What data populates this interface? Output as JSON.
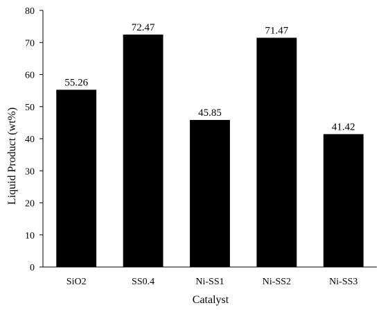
{
  "chart_data": {
    "type": "bar",
    "title": "",
    "xlabel": "Catalyst",
    "ylabel": "Liquid Product (wt%)",
    "categories": [
      "SiO2",
      "SS0.4",
      "Ni-SS1",
      "Ni-SS2",
      "Ni-SS3"
    ],
    "values": [
      55.26,
      72.47,
      45.85,
      71.47,
      41.42
    ],
    "data_labels": [
      "55.26",
      "72.47",
      "45.85",
      "71.47",
      "41.42"
    ],
    "ylim": [
      0,
      80
    ],
    "yticks": [
      0,
      10,
      20,
      30,
      40,
      50,
      60,
      70,
      80
    ],
    "ytick_labels": [
      "0",
      "10",
      "20",
      "30",
      "40",
      "50",
      "60",
      "70",
      "80"
    ],
    "grid": false,
    "legend": "none",
    "bar_color": "#000000"
  }
}
